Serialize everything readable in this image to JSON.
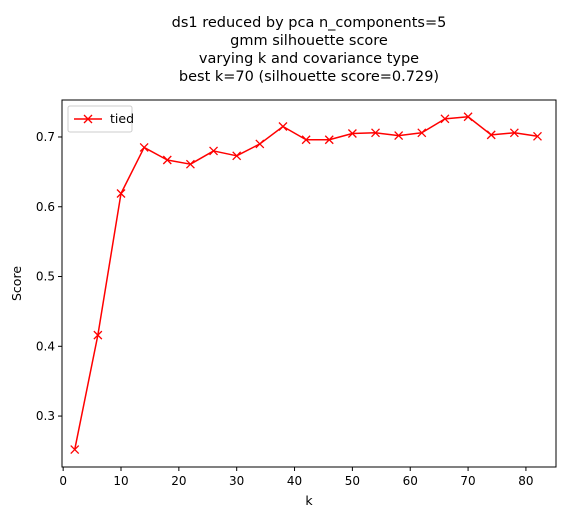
{
  "chart_data": {
    "type": "line",
    "title_lines": [
      "ds1 reduced by pca n_components=5",
      "gmm silhouette score",
      "varying k and covariance type",
      "best k=70 (silhouette score=0.729)"
    ],
    "xlabel": "k",
    "ylabel": "Score",
    "xlim": [
      -0.2,
      85.2
    ],
    "ylim": [
      0.227,
      0.753
    ],
    "xticks": [
      0,
      10,
      20,
      30,
      40,
      50,
      60,
      70,
      80
    ],
    "yticks": [
      0.3,
      0.4,
      0.5,
      0.6,
      0.7
    ],
    "ytick_labels": [
      "0.3",
      "0.4",
      "0.5",
      "0.6",
      "0.7"
    ],
    "grid": false,
    "legend_position": "top-left",
    "series": [
      {
        "name": "tied",
        "color": "#ff0000",
        "marker": "x",
        "x": [
          2,
          6,
          10,
          14,
          18,
          22,
          26,
          30,
          34,
          38,
          42,
          46,
          50,
          54,
          58,
          62,
          66,
          70,
          74,
          78,
          82
        ],
        "y": [
          0.252,
          0.416,
          0.619,
          0.685,
          0.667,
          0.661,
          0.68,
          0.673,
          0.69,
          0.715,
          0.696,
          0.696,
          0.705,
          0.706,
          0.702,
          0.706,
          0.726,
          0.729,
          0.703,
          0.706,
          0.701
        ]
      }
    ]
  }
}
